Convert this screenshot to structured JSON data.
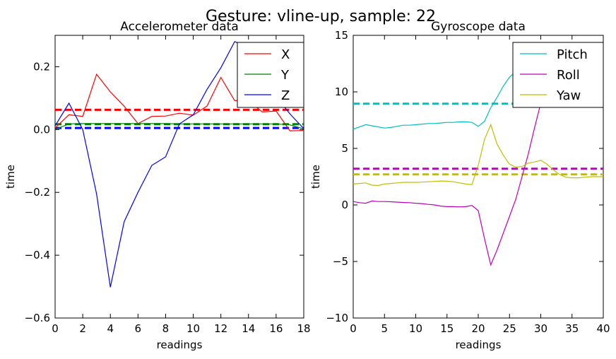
{
  "figure": {
    "suptitle": "Gesture: vline-up, sample: 22"
  },
  "chart_data": [
    {
      "type": "line",
      "title": "Accelerometer data",
      "xlabel": "readings",
      "ylabel": "time",
      "xlim": [
        0,
        18
      ],
      "ylim": [
        -0.6,
        0.3
      ],
      "xticks": [
        0,
        2,
        4,
        6,
        8,
        10,
        12,
        14,
        16,
        18
      ],
      "yticks": [
        -0.6,
        -0.4,
        -0.2,
        0.0,
        0.2
      ],
      "ytick_labels": [
        "−0.6",
        "−0.4",
        "−0.2",
        "0.0",
        "0.2"
      ],
      "grid": false,
      "legend_position": "top-right",
      "series": [
        {
          "name": "X",
          "color": "#ff0000",
          "mean": 0.063,
          "x": [
            0,
            1,
            2,
            3,
            4,
            5,
            6,
            7,
            8,
            9,
            10,
            11,
            12,
            13,
            14,
            15,
            16,
            17,
            18
          ],
          "y": [
            0.005,
            0.047,
            0.042,
            0.176,
            0.12,
            0.074,
            0.019,
            0.042,
            0.043,
            0.052,
            0.046,
            0.075,
            0.166,
            0.092,
            0.093,
            0.056,
            0.059,
            -0.004,
            -0.003
          ]
        },
        {
          "name": "Y",
          "color": "#008000",
          "mean": 0.017,
          "x": [
            0,
            1,
            2,
            3,
            4,
            5,
            6,
            7,
            8,
            9,
            10,
            11,
            12,
            13,
            14,
            15,
            16,
            17,
            18
          ],
          "y": [
            0.0,
            0.018,
            0.019,
            0.019,
            0.019,
            0.019,
            0.019,
            0.019,
            0.019,
            0.018,
            0.018,
            0.018,
            0.018,
            0.018,
            0.018,
            0.018,
            0.018,
            0.015,
            0.002
          ]
        },
        {
          "name": "Z",
          "color": "#0000ff",
          "mean": 0.005,
          "x": [
            0,
            1,
            2,
            3,
            4,
            5,
            6,
            7,
            8,
            9,
            10,
            11,
            12,
            13,
            14,
            15,
            16,
            17,
            18
          ],
          "y": [
            0.012,
            0.084,
            0.0,
            -0.205,
            -0.502,
            -0.293,
            -0.2,
            -0.114,
            -0.087,
            0.018,
            0.047,
            0.128,
            0.197,
            0.28,
            0.262,
            0.15,
            0.105,
            0.05,
            0.003
          ]
        }
      ]
    },
    {
      "type": "line",
      "title": "Gyroscope data",
      "xlabel": "readings",
      "ylabel": "time",
      "xlim": [
        0,
        40
      ],
      "ylim": [
        -10,
        15
      ],
      "xticks": [
        0,
        5,
        10,
        15,
        20,
        25,
        30,
        35,
        40
      ],
      "yticks": [
        -10,
        -5,
        0,
        5,
        10,
        15
      ],
      "ytick_labels": [
        "−10",
        "−5",
        "0",
        "5",
        "10",
        "15"
      ],
      "grid": false,
      "legend_position": "top-right",
      "series": [
        {
          "name": "Pitch",
          "color": "#00bfbf",
          "mean": 8.95,
          "x": [
            0,
            1,
            2,
            3,
            4,
            5,
            6,
            7,
            8,
            9,
            10,
            11,
            12,
            13,
            14,
            15,
            16,
            17,
            18,
            19,
            20,
            21,
            22,
            23,
            24,
            25,
            26,
            27,
            28,
            29,
            30,
            31,
            32,
            33,
            34,
            35,
            36,
            37,
            38,
            39,
            40
          ],
          "y": [
            6.7,
            6.9,
            7.1,
            7.0,
            6.9,
            6.8,
            6.85,
            6.95,
            7.05,
            7.05,
            7.1,
            7.15,
            7.2,
            7.2,
            7.25,
            7.3,
            7.3,
            7.35,
            7.35,
            7.3,
            6.95,
            7.4,
            8.6,
            9.5,
            10.5,
            11.3,
            11.8,
            11.9,
            12.0,
            12.1,
            12.2,
            12.2,
            12.1,
            12.0,
            12.1,
            12.2,
            12.1,
            12.0,
            12.05,
            12.1,
            12.0
          ]
        },
        {
          "name": "Roll",
          "color": "#bf00bf",
          "mean": 3.2,
          "x": [
            0,
            1,
            2,
            3,
            4,
            5,
            6,
            7,
            8,
            9,
            10,
            11,
            12,
            13,
            14,
            15,
            16,
            17,
            18,
            19,
            20,
            21,
            22,
            23,
            24,
            25,
            26,
            27,
            28,
            29,
            30,
            31,
            32,
            33,
            34,
            35,
            36,
            37,
            38,
            39,
            40
          ],
          "y": [
            0.3,
            0.2,
            0.15,
            0.35,
            0.3,
            0.3,
            0.28,
            0.25,
            0.22,
            0.2,
            0.15,
            0.12,
            0.05,
            0.0,
            -0.1,
            -0.15,
            -0.15,
            -0.17,
            -0.15,
            -0.05,
            -0.5,
            -3.0,
            -5.3,
            -4.0,
            -2.5,
            -1.0,
            0.5,
            2.5,
            4.5,
            6.8,
            9.0,
            11.0,
            12.2,
            12.5,
            12.4,
            12.3,
            12.2,
            12.3,
            12.4,
            12.5,
            12.1
          ]
        },
        {
          "name": "Yaw",
          "color": "#bfbf00",
          "mean": 2.7,
          "x": [
            0,
            1,
            2,
            3,
            4,
            5,
            6,
            7,
            8,
            9,
            10,
            11,
            12,
            13,
            14,
            15,
            16,
            17,
            18,
            19,
            20,
            21,
            22,
            23,
            24,
            25,
            26,
            27,
            28,
            29,
            30,
            31,
            32,
            33,
            34,
            35,
            36,
            37,
            38,
            39,
            40
          ],
          "y": [
            1.85,
            1.9,
            1.95,
            1.75,
            1.72,
            1.85,
            1.9,
            1.95,
            2.0,
            2.0,
            2.0,
            2.02,
            2.05,
            2.08,
            2.12,
            2.1,
            2.05,
            1.95,
            1.85,
            1.8,
            3.5,
            5.8,
            7.1,
            5.4,
            4.4,
            3.6,
            3.35,
            3.4,
            3.7,
            3.8,
            3.95,
            3.6,
            3.1,
            2.7,
            2.45,
            2.4,
            2.4,
            2.45,
            2.5,
            2.5,
            2.5
          ]
        }
      ]
    }
  ]
}
